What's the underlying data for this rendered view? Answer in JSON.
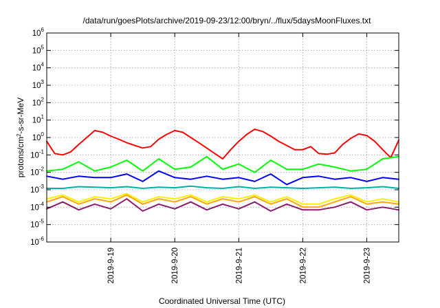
{
  "chart_data": {
    "type": "line",
    "title": "/data/run/goesPlots/archive/2019-09-23/12:00/bryn/../flux/5daysMoonFluxes.txt",
    "xlabel": "Coordinated Universal Time (UTC)",
    "ylabel": "protons/cm²-s-sr-MeV",
    "ylabel_parts": {
      "pre": "protons/cm",
      "sup": "2",
      "post": "-s-sr-MeV"
    },
    "y_scale": "log",
    "ylim": [
      1e-06,
      1000000.0
    ],
    "y_ticks": [
      {
        "base": "10",
        "exp": "-6"
      },
      {
        "base": "10",
        "exp": "-5"
      },
      {
        "base": "10",
        "exp": "-4"
      },
      {
        "base": "10",
        "exp": "-3"
      },
      {
        "base": "10",
        "exp": "-2"
      },
      {
        "base": "10",
        "exp": "-1"
      },
      {
        "base": "10",
        "exp": "0"
      },
      {
        "base": "10",
        "exp": "1"
      },
      {
        "base": "10",
        "exp": "2"
      },
      {
        "base": "10",
        "exp": "3"
      },
      {
        "base": "10",
        "exp": "4"
      },
      {
        "base": "10",
        "exp": "5"
      },
      {
        "base": "10",
        "exp": "6"
      }
    ],
    "xlim": [
      "2019-09-18 00:00",
      "2019-09-23 12:00"
    ],
    "x_ticks": [
      "2019-9-19",
      "2019-9-20",
      "2019-9-21",
      "2019-9-22",
      "2019-9-23"
    ],
    "grid": true,
    "legend": "none",
    "series": [
      {
        "color": "#ff0000",
        "x": [
          "2019-09-18 00:00",
          "2019-09-18 03:00",
          "2019-09-18 06:00",
          "2019-09-18 09:00",
          "2019-09-18 12:00",
          "2019-09-18 15:00",
          "2019-09-18 18:00",
          "2019-09-18 21:00",
          "2019-09-19 00:00",
          "2019-09-19 03:00",
          "2019-09-19 06:00",
          "2019-09-19 09:00",
          "2019-09-19 12:00",
          "2019-09-19 15:00",
          "2019-09-19 18:00",
          "2019-09-19 21:00",
          "2019-09-20 00:00",
          "2019-09-20 03:00",
          "2019-09-20 06:00",
          "2019-09-20 09:00",
          "2019-09-20 12:00",
          "2019-09-20 15:00",
          "2019-09-20 18:00",
          "2019-09-20 21:00",
          "2019-09-21 00:00",
          "2019-09-21 03:00",
          "2019-09-21 06:00",
          "2019-09-21 09:00",
          "2019-09-21 12:00",
          "2019-09-21 15:00",
          "2019-09-21 18:00",
          "2019-09-21 21:00",
          "2019-09-22 00:00",
          "2019-09-22 03:00",
          "2019-09-22 06:00",
          "2019-09-22 09:00",
          "2019-09-22 12:00",
          "2019-09-22 15:00",
          "2019-09-22 18:00",
          "2019-09-22 21:00",
          "2019-09-23 00:00",
          "2019-09-23 03:00",
          "2019-09-23 06:00",
          "2019-09-23 09:00",
          "2019-09-23 12:00"
        ],
        "values": [
          0.6,
          0.12,
          0.1,
          0.15,
          0.4,
          1.0,
          2.5,
          2.0,
          1.2,
          0.8,
          0.5,
          0.35,
          0.25,
          0.3,
          0.8,
          1.5,
          2.5,
          2.0,
          1.0,
          0.5,
          0.25,
          0.12,
          0.06,
          0.2,
          0.6,
          1.5,
          3.0,
          2.2,
          1.2,
          0.6,
          0.35,
          0.2,
          0.2,
          0.3,
          0.12,
          0.11,
          0.13,
          0.4,
          0.9,
          1.6,
          1.3,
          0.6,
          0.2,
          0.07,
          0.7
        ]
      },
      {
        "color": "#00ff00",
        "x": [
          "2019-09-18 00:00",
          "2019-09-18 06:00",
          "2019-09-18 12:00",
          "2019-09-18 18:00",
          "2019-09-19 00:00",
          "2019-09-19 06:00",
          "2019-09-19 12:00",
          "2019-09-19 18:00",
          "2019-09-20 00:00",
          "2019-09-20 06:00",
          "2019-09-20 12:00",
          "2019-09-20 18:00",
          "2019-09-21 00:00",
          "2019-09-21 06:00",
          "2019-09-21 12:00",
          "2019-09-21 18:00",
          "2019-09-22 00:00",
          "2019-09-22 06:00",
          "2019-09-22 12:00",
          "2019-09-22 18:00",
          "2019-09-23 00:00",
          "2019-09-23 06:00",
          "2019-09-23 12:00"
        ],
        "values": [
          0.012,
          0.015,
          0.04,
          0.012,
          0.02,
          0.05,
          0.012,
          0.06,
          0.015,
          0.02,
          0.08,
          0.015,
          0.03,
          0.01,
          0.05,
          0.015,
          0.015,
          0.03,
          0.02,
          0.012,
          0.015,
          0.06,
          0.08
        ]
      },
      {
        "color": "#0000ff",
        "x": [
          "2019-09-18 00:00",
          "2019-09-18 06:00",
          "2019-09-18 12:00",
          "2019-09-18 18:00",
          "2019-09-19 00:00",
          "2019-09-19 06:00",
          "2019-09-19 12:00",
          "2019-09-19 18:00",
          "2019-09-20 00:00",
          "2019-09-20 06:00",
          "2019-09-20 12:00",
          "2019-09-20 18:00",
          "2019-09-21 00:00",
          "2019-09-21 06:00",
          "2019-09-21 12:00",
          "2019-09-21 18:00",
          "2019-09-22 00:00",
          "2019-09-22 06:00",
          "2019-09-22 12:00",
          "2019-09-22 18:00",
          "2019-09-23 00:00",
          "2019-09-23 06:00",
          "2019-09-23 12:00"
        ],
        "values": [
          0.006,
          0.004,
          0.006,
          0.005,
          0.005,
          0.008,
          0.003,
          0.012,
          0.005,
          0.004,
          0.006,
          0.004,
          0.005,
          0.003,
          0.008,
          0.002,
          0.005,
          0.006,
          0.004,
          0.005,
          0.003,
          0.005,
          0.004
        ]
      },
      {
        "color": "#00b0a0",
        "x": [
          "2019-09-18 00:00",
          "2019-09-18 06:00",
          "2019-09-18 12:00",
          "2019-09-18 18:00",
          "2019-09-19 00:00",
          "2019-09-19 06:00",
          "2019-09-19 12:00",
          "2019-09-19 18:00",
          "2019-09-20 00:00",
          "2019-09-20 06:00",
          "2019-09-20 12:00",
          "2019-09-20 18:00",
          "2019-09-21 00:00",
          "2019-09-21 06:00",
          "2019-09-21 12:00",
          "2019-09-21 18:00",
          "2019-09-22 00:00",
          "2019-09-22 06:00",
          "2019-09-22 12:00",
          "2019-09-22 18:00",
          "2019-09-23 00:00",
          "2019-09-23 06:00",
          "2019-09-23 12:00"
        ],
        "values": [
          0.0012,
          0.0012,
          0.0015,
          0.0014,
          0.0013,
          0.0015,
          0.0012,
          0.0014,
          0.0013,
          0.0016,
          0.0013,
          0.0012,
          0.0015,
          0.0012,
          0.0014,
          0.0013,
          0.0012,
          0.0013,
          0.0014,
          0.0012,
          0.0013,
          0.0015,
          0.0012
        ]
      },
      {
        "color": "#ffee00",
        "x": [
          "2019-09-18 00:00",
          "2019-09-18 06:00",
          "2019-09-18 12:00",
          "2019-09-18 18:00",
          "2019-09-19 00:00",
          "2019-09-19 06:00",
          "2019-09-19 12:00",
          "2019-09-19 18:00",
          "2019-09-20 00:00",
          "2019-09-20 06:00",
          "2019-09-20 12:00",
          "2019-09-20 18:00",
          "2019-09-21 00:00",
          "2019-09-21 06:00",
          "2019-09-21 12:00",
          "2019-09-21 18:00",
          "2019-09-22 00:00",
          "2019-09-22 06:00",
          "2019-09-22 12:00",
          "2019-09-22 18:00",
          "2019-09-23 00:00",
          "2019-09-23 06:00",
          "2019-09-23 12:00"
        ],
        "values": [
          0.0003,
          0.0005,
          0.0002,
          0.0004,
          0.0003,
          0.0006,
          0.0002,
          0.0004,
          0.0003,
          0.0005,
          0.0002,
          0.0004,
          0.0003,
          0.0005,
          0.0002,
          0.0004,
          0.00015,
          0.00015,
          0.0003,
          0.0005,
          0.0002,
          0.0003,
          0.0002
        ]
      },
      {
        "color": "#ffa500",
        "x": [
          "2019-09-18 00:00",
          "2019-09-18 06:00",
          "2019-09-18 12:00",
          "2019-09-18 18:00",
          "2019-09-19 00:00",
          "2019-09-19 06:00",
          "2019-09-19 12:00",
          "2019-09-19 18:00",
          "2019-09-20 00:00",
          "2019-09-20 06:00",
          "2019-09-20 12:00",
          "2019-09-20 18:00",
          "2019-09-21 00:00",
          "2019-09-21 06:00",
          "2019-09-21 12:00",
          "2019-09-21 18:00",
          "2019-09-22 00:00",
          "2019-09-22 06:00",
          "2019-09-22 12:00",
          "2019-09-22 18:00",
          "2019-09-23 00:00",
          "2019-09-23 06:00",
          "2019-09-23 12:00"
        ],
        "values": [
          0.0002,
          0.0004,
          0.00015,
          0.0003,
          0.0002,
          0.0005,
          0.00015,
          0.0003,
          0.0002,
          0.0004,
          0.00015,
          0.0003,
          0.0002,
          0.0004,
          0.00015,
          0.0003,
          0.0001,
          0.0001,
          0.0002,
          0.0004,
          0.00015,
          0.0002,
          0.00015
        ]
      },
      {
        "color": "#8b1a6b",
        "x": [
          "2019-09-18 00:00",
          "2019-09-18 06:00",
          "2019-09-18 12:00",
          "2019-09-18 18:00",
          "2019-09-19 00:00",
          "2019-09-19 06:00",
          "2019-09-19 12:00",
          "2019-09-19 18:00",
          "2019-09-20 00:00",
          "2019-09-20 06:00",
          "2019-09-20 12:00",
          "2019-09-20 18:00",
          "2019-09-21 00:00",
          "2019-09-21 06:00",
          "2019-09-21 12:00",
          "2019-09-21 18:00",
          "2019-09-22 00:00",
          "2019-09-22 06:00",
          "2019-09-22 12:00",
          "2019-09-22 18:00",
          "2019-09-23 00:00",
          "2019-09-23 06:00",
          "2019-09-23 12:00"
        ],
        "values": [
          8e-05,
          0.0002,
          7e-05,
          0.00015,
          8e-05,
          0.0003,
          6e-05,
          0.00015,
          8e-05,
          0.0002,
          7e-05,
          0.00015,
          8e-05,
          0.0002,
          6e-05,
          0.00015,
          7e-05,
          7e-05,
          0.0001,
          0.0002,
          7e-05,
          0.0001,
          7e-05
        ]
      }
    ]
  }
}
